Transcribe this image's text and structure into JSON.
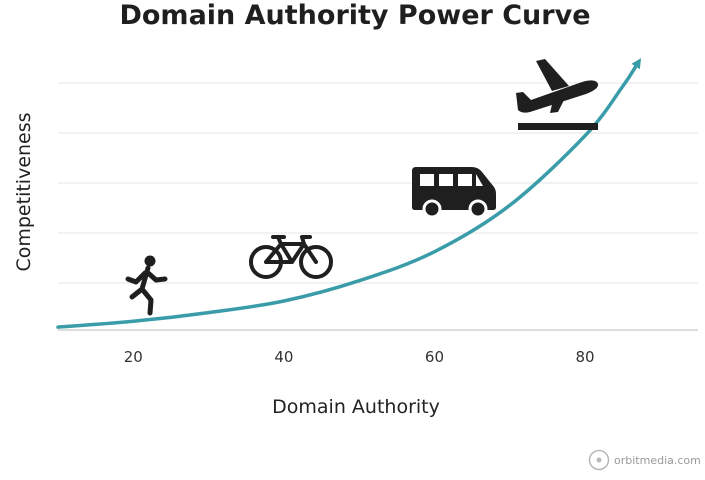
{
  "chart_data": {
    "type": "line",
    "title": "Domain Authority Power Curve",
    "xlabel": "Domain Authority",
    "ylabel": "Competitiveness",
    "xlim": [
      10,
      95
    ],
    "ylim": [
      0,
      100
    ],
    "x_ticks": [
      20,
      40,
      60,
      80
    ],
    "grid": true,
    "series": [
      {
        "x": [
          10,
          20,
          30,
          40,
          50,
          60,
          70,
          80,
          85,
          87
        ],
        "values": [
          1,
          3,
          6,
          10,
          17,
          27,
          43,
          67,
          84,
          92
        ]
      }
    ],
    "line_color": "#3a9ca8",
    "icon_color": "#1f1f1f",
    "icons": [
      "runner-icon",
      "bicycle-icon",
      "van-icon",
      "airplane-takeoff-icon"
    ]
  },
  "watermark": {
    "text": "orbitmedia.com",
    "icon": "orbit-logo-icon"
  }
}
